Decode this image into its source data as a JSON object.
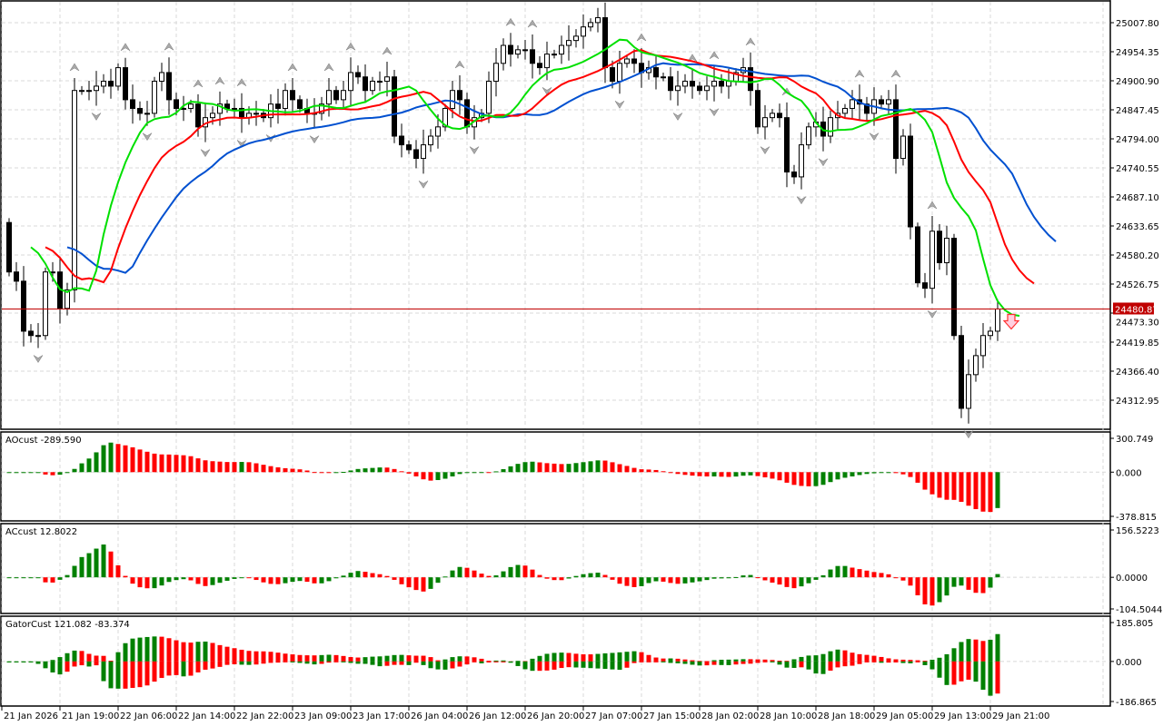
{
  "chart_data": {
    "type": "candlestick",
    "symbol_price_current": "24480.87",
    "price_axis_ticks": [
      "25007.80",
      "24954.35",
      "24900.90",
      "24847.45",
      "24794.00",
      "24740.55",
      "24687.10",
      "24633.65",
      "24580.20",
      "24526.75",
      "24473.30",
      "24419.85",
      "24366.40",
      "24312.95"
    ],
    "price_ylim": [
      24290,
      25040
    ],
    "time_axis_labels": [
      "21 Jan 2026",
      "21 Jan 19:00",
      "22 Jan 06:00",
      "22 Jan 14:00",
      "22 Jan 22:00",
      "23 Jan 09:00",
      "23 Jan 17:00",
      "26 Jan 04:00",
      "26 Jan 12:00",
      "26 Jan 20:00",
      "27 Jan 07:00",
      "27 Jan 15:00",
      "28 Jan 02:00",
      "28 Jan 10:00",
      "28 Jan 18:00",
      "29 Jan 05:00",
      "29 Jan 13:00",
      "29 Jan 21:00"
    ],
    "closes": [
      24549,
      24532,
      24440,
      24432,
      24432,
      24549,
      24549,
      24482,
      24516,
      24883,
      24883,
      24883,
      24891,
      24900,
      24891,
      24925,
      24866,
      24850,
      24841,
      24841,
      24900,
      24916,
      24866,
      24850,
      24850,
      24858,
      24816,
      24833,
      24841,
      24858,
      24850,
      24850,
      24833,
      24841,
      24841,
      24833,
      24858,
      24850,
      24883,
      24866,
      24850,
      24841,
      24841,
      24858,
      24883,
      24866,
      24883,
      24916,
      24908,
      24883,
      24900,
      24900,
      24908,
      24799,
      24783,
      24774,
      24758,
      24783,
      24799,
      24816,
      24850,
      24883,
      24866,
      24816,
      24833,
      24841,
      24900,
      24933,
      24966,
      24950,
      24958,
      24958,
      24933,
      24925,
      24950,
      24950,
      24966,
      24975,
      24983,
      25000,
      25008,
      25017,
      24925,
      24900,
      24933,
      24941,
      24933,
      24916,
      24925,
      24908,
      24908,
      24883,
      24891,
      24900,
      24891,
      24883,
      24891,
      24900,
      24891,
      24900,
      24916,
      24925,
      24883,
      24816,
      24833,
      24841,
      24833,
      24733,
      24724,
      24783,
      24816,
      24825,
      24799,
      24833,
      24841,
      24850,
      24866,
      24858,
      24841,
      24866,
      24858,
      24866,
      24758,
      24799,
      24632,
      24529,
      24519,
      24624,
      24566,
      24611,
      24432,
      24298,
      24360,
      24395,
      24432,
      24440,
      24480.87
    ],
    "first_open": 24640,
    "alligator": {
      "jaw_color": "#0050d0",
      "teeth_color": "#ff0000",
      "lips_color": "#00e000"
    },
    "indicators": [
      {
        "name": "AOcust",
        "label": "AOcust -289.590",
        "ticks": [
          "300.749",
          "0.000",
          "-378.815"
        ],
        "range": [
          -378.815,
          300.749
        ]
      },
      {
        "name": "ACcust",
        "label": "ACcust 12.8022",
        "ticks": [
          "156.5223",
          "0.0000",
          "-104.5044"
        ],
        "range": [
          -104.5044,
          156.5223
        ]
      },
      {
        "name": "GatorCust",
        "label": "GatorCust 121.082 -83.374",
        "ticks": [
          "185.805",
          "0.000",
          "-186.865"
        ],
        "range": [
          -186.865,
          185.805
        ]
      }
    ],
    "colors": {
      "up": "#008000",
      "down": "#ff0000",
      "price_line": "#c00000",
      "grid": "#d8d8d8"
    }
  }
}
